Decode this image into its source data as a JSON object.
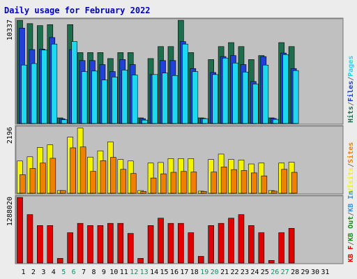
{
  "colors": {
    "background": "#ececec",
    "plot_bg": "#c0c0c0",
    "frame": "#707070",
    "title": "#0000c0",
    "hits": "#1e6e4e",
    "files": "#2040d8",
    "pages": "#20d8ee",
    "visits": "#f4f400",
    "sites": "#f08000",
    "kb_in": "#3b92d6",
    "kb_out": "#1a8a1a",
    "kbf": "#e00000",
    "day_weekday": "#000000",
    "day_weekend": "#1a8a6a"
  },
  "chart_data": {
    "type": "bar",
    "title": "Daily usage for February 2022",
    "categories": [
      "1",
      "2",
      "3",
      "4",
      "5",
      "6",
      "7",
      "8",
      "9",
      "10",
      "11",
      "12",
      "13",
      "14",
      "15",
      "16",
      "17",
      "18",
      "19",
      "20",
      "21",
      "22",
      "23",
      "24",
      "25",
      "26",
      "27",
      "28",
      "29",
      "30",
      "31"
    ],
    "weekend_days": [
      5,
      6,
      12,
      13,
      19,
      20,
      26,
      27
    ],
    "panels": [
      {
        "max_label": "10337",
        "ymax": 10337,
        "legend": [
          {
            "text": "Hits",
            "color_key": "hits"
          },
          {
            "text": "/",
            "color_key": "frame"
          },
          {
            "text": "Files",
            "color_key": "files"
          },
          {
            "text": "/",
            "color_key": "frame"
          },
          {
            "text": "Pages",
            "color_key": "pages"
          }
        ],
        "series": [
          {
            "name": "Hits",
            "color_key": "hits",
            "values": [
              10330,
              10000,
              9800,
              9900,
              560,
              9900,
              7100,
              7100,
              7100,
              6500,
              7100,
              7100,
              560,
              6500,
              7700,
              7700,
              10330,
              7100,
              560,
              6400,
              7700,
              8100,
              7700,
              6400,
              6800,
              560,
              8100,
              7700,
              0,
              0,
              0
            ]
          },
          {
            "name": "Files",
            "color_key": "files",
            "values": [
              9550,
              7400,
              7450,
              8600,
              470,
              7400,
              6300,
              6300,
              5900,
              5200,
              6400,
              5900,
              480,
              4900,
              6300,
              6300,
              8200,
              5500,
              520,
              5100,
              6700,
              6800,
              5900,
              4200,
              6700,
              500,
              7050,
              5500,
              0,
              0,
              0
            ]
          },
          {
            "name": "Pages",
            "color_key": "pages",
            "values": [
              5850,
              6000,
              7350,
              7950,
              380,
              8200,
              5200,
              5250,
              4350,
              4650,
              5350,
              4850,
              340,
              4900,
              5050,
              4800,
              7950,
              5200,
              480,
              4900,
              6550,
              6050,
              5150,
              3950,
              5850,
              410,
              6900,
              5300,
              0,
              0,
              0
            ]
          }
        ]
      },
      {
        "max_label": "2196",
        "ymax": 2196,
        "legend": [
          {
            "text": "Visits",
            "color_key": "visits"
          },
          {
            "text": "/",
            "color_key": "frame"
          },
          {
            "text": "Sites",
            "color_key": "sites"
          }
        ],
        "series": [
          {
            "name": "Visits",
            "color_key": "visits",
            "values": [
              1080,
              1220,
              1530,
              1620,
              90,
              1880,
              2180,
              1210,
              1420,
              1720,
              1130,
              1080,
              90,
              1010,
              1030,
              1160,
              1160,
              1160,
              70,
              1130,
              1310,
              1130,
              1110,
              980,
              1010,
              90,
              1010,
              1040,
              0,
              0,
              0
            ]
          },
          {
            "name": "Sites",
            "color_key": "sites",
            "values": [
              620,
              830,
              1010,
              1170,
              90,
              1520,
              1550,
              730,
              1090,
              1200,
              800,
              660,
              60,
              510,
              650,
              700,
              730,
              710,
              60,
              710,
              880,
              790,
              760,
              680,
              580,
              70,
              800,
              700,
              0,
              0,
              0
            ]
          }
        ]
      },
      {
        "max_label": "1288020",
        "ymax": 1288020,
        "legend": [
          {
            "text": "KB F",
            "color_key": "kbf"
          },
          {
            "text": "/",
            "color_key": "frame"
          },
          {
            "text": "KB Out",
            "color_key": "kb_out"
          },
          {
            "text": "/",
            "color_key": "frame"
          },
          {
            "text": "KB In",
            "color_key": "kb_in"
          }
        ],
        "series": [
          {
            "name": "KB F",
            "color_key": "kbf",
            "values": [
              1288020,
              950200,
              735400,
              735400,
              90000,
              595100,
              778200,
              735400,
              735400,
              778200,
              778200,
              580800,
              90000,
              735400,
              880200,
              778200,
              778200,
              595100,
              130000,
              735400,
              778200,
              880200,
              950200,
              735400,
              595100,
              50000,
              595100,
              680200,
              0,
              0,
              0
            ]
          }
        ]
      }
    ]
  }
}
